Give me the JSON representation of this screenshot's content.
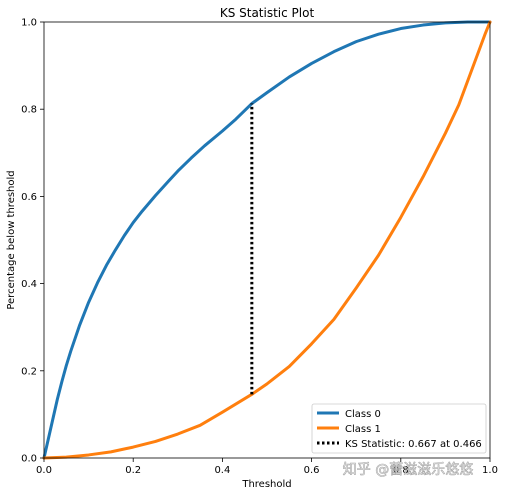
{
  "chart_data": {
    "type": "line",
    "title": "KS Statistic Plot",
    "xlabel": "Threshold",
    "ylabel": "Percentage below threshold",
    "xlim": [
      0.0,
      1.0
    ],
    "ylim": [
      0.0,
      1.0
    ],
    "xticks": [
      "0.0",
      "0.2",
      "0.4",
      "0.6",
      "0.8",
      "1.0"
    ],
    "yticks": [
      "0.0",
      "0.2",
      "0.4",
      "0.6",
      "0.8",
      "1.0"
    ],
    "grid": false,
    "legend_position": "lower-right",
    "series": [
      {
        "name": "Class 0",
        "color": "#1f77b4",
        "x": [
          0.0,
          0.01,
          0.02,
          0.03,
          0.04,
          0.05,
          0.06,
          0.08,
          0.1,
          0.12,
          0.14,
          0.16,
          0.18,
          0.2,
          0.22,
          0.25,
          0.28,
          0.3,
          0.33,
          0.36,
          0.4,
          0.43,
          0.466,
          0.5,
          0.55,
          0.6,
          0.65,
          0.7,
          0.75,
          0.8,
          0.85,
          0.9,
          0.95,
          1.0
        ],
        "y": [
          0.0,
          0.045,
          0.09,
          0.135,
          0.175,
          0.212,
          0.245,
          0.305,
          0.357,
          0.402,
          0.442,
          0.477,
          0.51,
          0.54,
          0.566,
          0.602,
          0.636,
          0.658,
          0.688,
          0.716,
          0.75,
          0.777,
          0.813,
          0.838,
          0.874,
          0.905,
          0.932,
          0.955,
          0.972,
          0.985,
          0.993,
          0.998,
          1.0,
          1.0
        ]
      },
      {
        "name": "Class 1",
        "color": "#ff7f0e",
        "x": [
          0.0,
          0.05,
          0.1,
          0.15,
          0.2,
          0.25,
          0.3,
          0.35,
          0.4,
          0.466,
          0.5,
          0.55,
          0.6,
          0.65,
          0.7,
          0.75,
          0.8,
          0.85,
          0.9,
          0.93,
          0.95,
          0.97,
          0.99,
          1.0
        ],
        "y": [
          0.0,
          0.002,
          0.007,
          0.014,
          0.025,
          0.038,
          0.055,
          0.075,
          0.105,
          0.146,
          0.17,
          0.21,
          0.262,
          0.318,
          0.39,
          0.465,
          0.552,
          0.645,
          0.745,
          0.81,
          0.865,
          0.92,
          0.975,
          1.0
        ]
      }
    ],
    "ks": {
      "label": "KS Statistic: 0.667 at 0.466",
      "x": 0.466,
      "y_low": 0.146,
      "y_high": 0.813,
      "color": "#000000"
    }
  },
  "watermark": "知乎 @蕾滋滋乐悠悠"
}
